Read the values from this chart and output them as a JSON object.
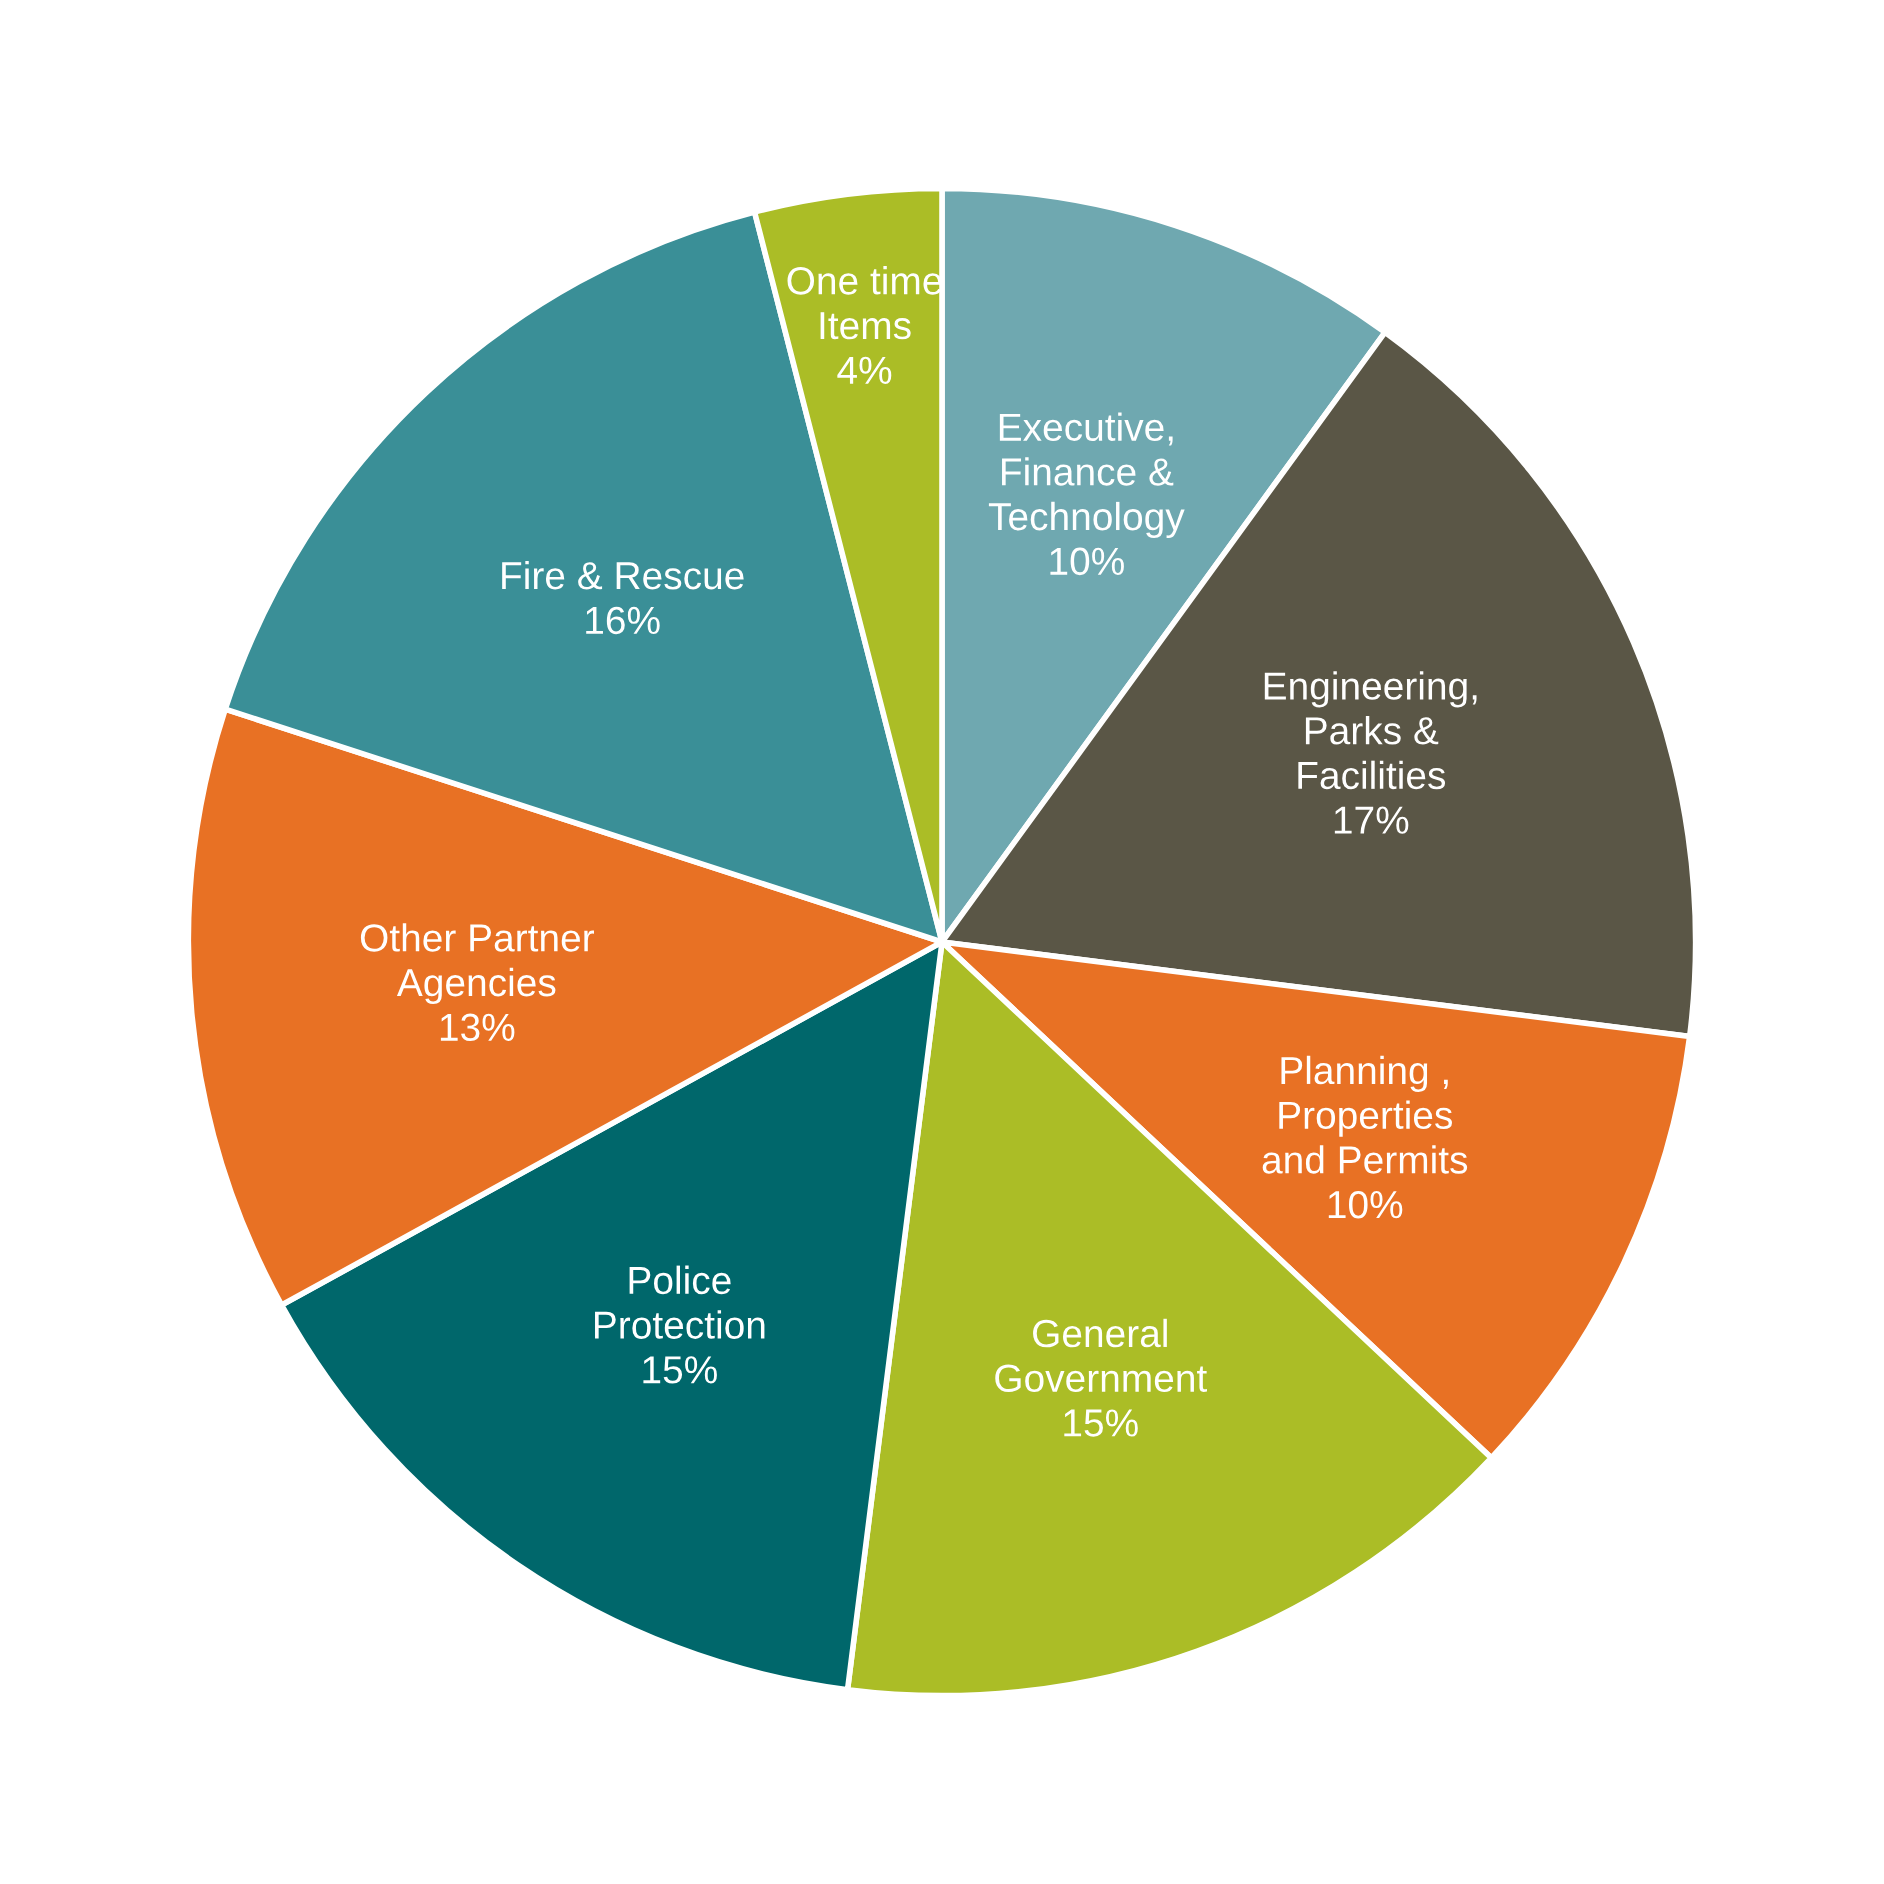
{
  "chart_data": {
    "type": "pie",
    "categories": [
      "Executive,\nFinance &\nTechnology",
      "Engineering,\nParks &\nFacilities",
      "Planning ,\nProperties\nand Permits",
      "General\nGovernment",
      "Police\nProtection",
      "Other Partner\nAgencies",
      "Fire & Rescue",
      "One time\nItems"
    ],
    "values": [
      10,
      17,
      10,
      15,
      15,
      13,
      16,
      4
    ],
    "value_labels": [
      "10%",
      "17%",
      "10%",
      "15%",
      "15%",
      "13%",
      "16%",
      "4%"
    ],
    "colors": [
      "#6fa8b0",
      "#5a5646",
      "#e87124",
      "#abbd26",
      "#00676b",
      "#e87124",
      "#3a8f97",
      "#abbd26"
    ]
  }
}
